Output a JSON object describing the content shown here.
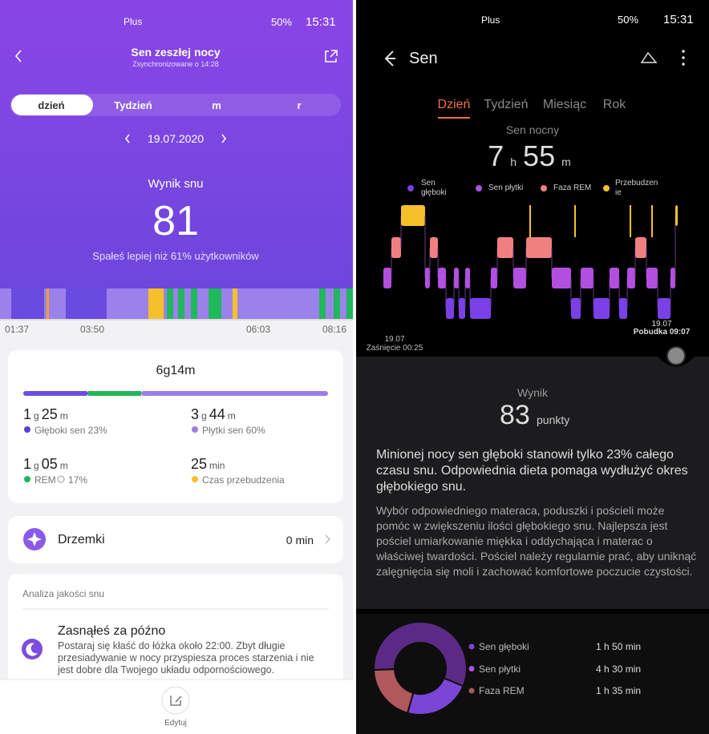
{
  "left": {
    "status": {
      "carrier": "Plus",
      "battery": "50%",
      "time": "15:31"
    },
    "header": {
      "title": "Sen zeszłej nocy",
      "subtitle": "Zsynchronizowane o 14:28"
    },
    "tabs": [
      "dzień",
      "Tydzień",
      "m",
      "r"
    ],
    "date": "19.07.2020",
    "score": {
      "label": "Wynik snu",
      "value": 81,
      "note": "Spałeś lepiej niż 61% użytkowników"
    },
    "timeline": [
      "01:37",
      "03:50",
      "06:03",
      "08:16"
    ],
    "summary": {
      "total": "6g14m",
      "stats": [
        {
          "parts": [
            "1",
            "g",
            "25",
            "m"
          ],
          "label": "Głęboki sen 23%"
        },
        {
          "parts": [
            "3",
            "g",
            "44",
            "m"
          ],
          "label": "Płytki sen 60%"
        },
        {
          "parts": [
            "1",
            "g",
            "05",
            "m"
          ],
          "label": "REM",
          "extra": "17%"
        },
        {
          "parts": [
            "25",
            "min"
          ],
          "label": "Czas przebudzenia"
        }
      ]
    },
    "naps": {
      "label": "Drzemki",
      "value": "0 min"
    },
    "analysis": {
      "title": "Analiza jakości snu",
      "item_title": "Zasnąłeś za późno",
      "item_text": "Postaraj się kłaść do łóżka około 22:00. Zbyt długie przesiadywanie w nocy przyspiesza proces starzenia i nie jest dobre dla Twojego układu odpornościowego."
    },
    "footer": "Edytuj"
  },
  "right": {
    "status": {
      "carrier": "Plus",
      "battery": "50%",
      "time": "15:31"
    },
    "title": "Sen",
    "tabs": [
      "Dzień",
      "Tydzień",
      "Miesiąc",
      "Rok"
    ],
    "night": {
      "label": "Sen nocny",
      "parts": [
        "7",
        "h",
        "55",
        "m"
      ]
    },
    "legend": [
      "Sen głęboki",
      "Sen płytki",
      "Faza REM",
      "Przebudzenie"
    ],
    "chart": {
      "start_date": "19.07",
      "start_label": "Zaśnięcie 00:25",
      "end_date": "19.07",
      "end_label": "Pobudka 09:07"
    },
    "score": {
      "label": "Wynik",
      "value": 83,
      "unit": "punkty"
    },
    "advice": {
      "main": "Minionej nocy sen głęboki stanowił tylko 23% całego czasu snu. Odpowiednia dieta pomaga wydłużyć okres głębokiego snu.",
      "detail": "Wybór odpowiedniego materaca, poduszki i pościeli może pomóc w zwiększeniu ilości głębokiego snu. Najlepsza jest pościel umiarkowanie miękka i oddychająca i materac o właściwej twardości. Pościel należy regularnie prać, aby uniknąć zalęgnięcia się moli i zachować komfortowe poczucie czystości."
    },
    "breakdown": [
      {
        "name": "Sen głęboki",
        "duration": "1 h 50 min",
        "color": "#7b45d6"
      },
      {
        "name": "Sen płytki",
        "duration": "4 h 30 min",
        "color": "#5b2a84"
      },
      {
        "name": "Faza REM",
        "duration": "1 h 35 min",
        "color": "#b0585c"
      }
    ]
  }
}
